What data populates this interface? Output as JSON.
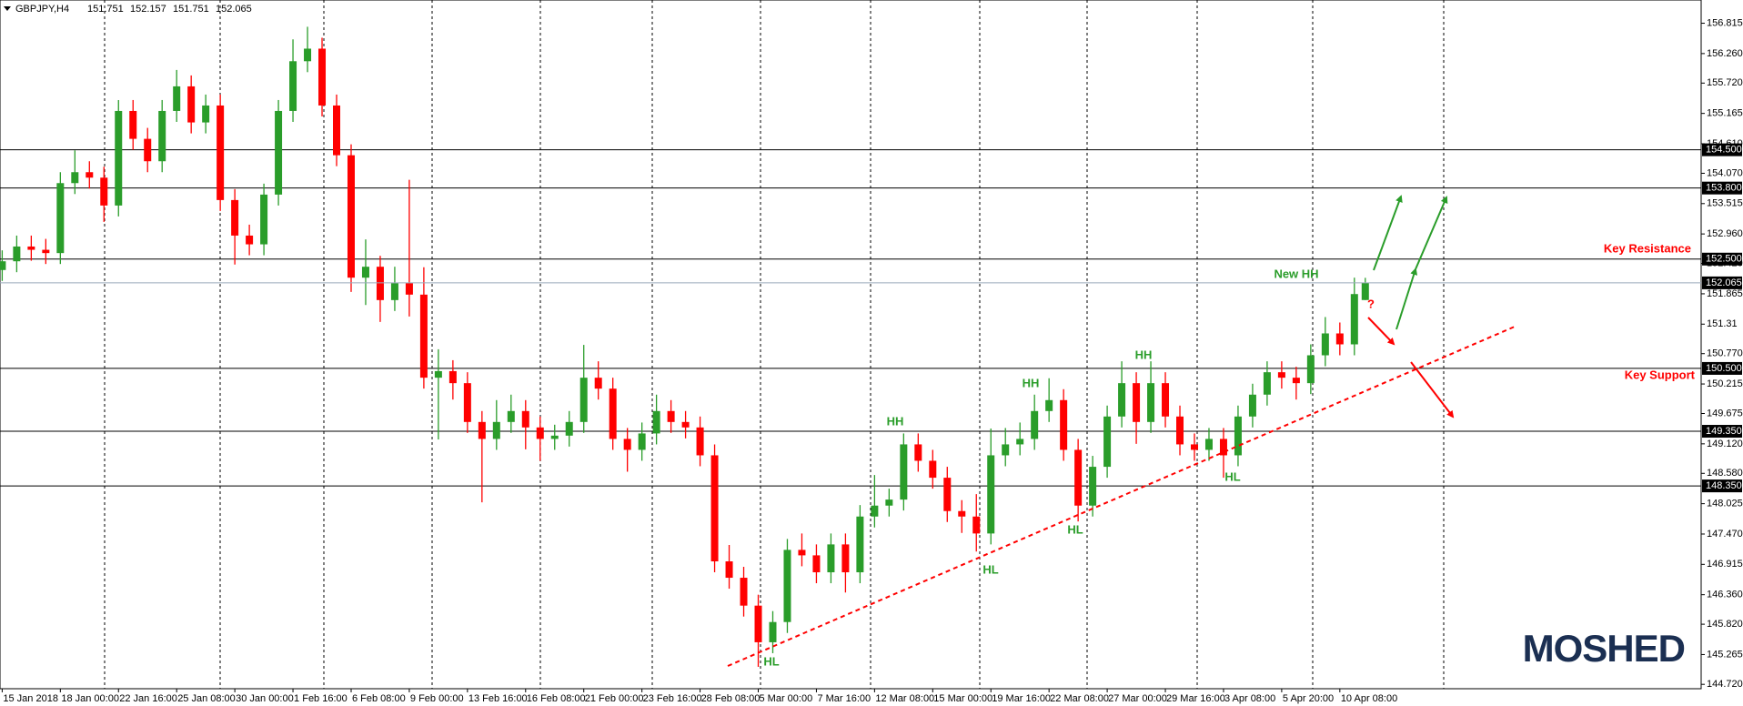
{
  "chart_data": {
    "type": "candlestick",
    "symbol": "GBPJPY,H4",
    "up_color": "#2a9d2a",
    "down_color": "#ff0000",
    "x": [
      0,
      4,
      8,
      12,
      16,
      20,
      24,
      28,
      32,
      36,
      40,
      44,
      48,
      52,
      56,
      60,
      64,
      68,
      72,
      76,
      80,
      84,
      88,
      92,
      96,
      100,
      104,
      108,
      112,
      116,
      120,
      124,
      128,
      132,
      136,
      140,
      144,
      148,
      152,
      156,
      160,
      164,
      168,
      172,
      176,
      180,
      184,
      188,
      192,
      196,
      200,
      204,
      208,
      212,
      216,
      220,
      224,
      228,
      232,
      236,
      240,
      244,
      248,
      252,
      256,
      260,
      264,
      268,
      272,
      276,
      280,
      284,
      288,
      292,
      296,
      300,
      304,
      308,
      312,
      316,
      320,
      324,
      328,
      332,
      336,
      340,
      344,
      348,
      352,
      356,
      360,
      364,
      368,
      372,
      375
    ],
    "open": [
      152.3,
      152.46,
      152.73,
      152.67,
      152.61,
      153.89,
      154.09,
      153.99,
      153.48,
      155.21,
      154.7,
      154.29,
      155.21,
      155.66,
      155.0,
      155.31,
      153.58,
      152.93,
      152.77,
      153.68,
      155.21,
      156.12,
      156.35,
      155.31,
      154.4,
      152.16,
      152.36,
      151.75,
      152.06,
      151.85,
      150.33,
      150.45,
      150.23,
      149.52,
      149.21,
      149.52,
      149.72,
      149.42,
      149.21,
      149.27,
      149.52,
      150.33,
      150.13,
      149.21,
      149.01,
      149.31,
      149.72,
      149.52,
      149.42,
      148.91,
      146.97,
      146.67,
      146.16,
      145.49,
      145.86,
      147.18,
      147.08,
      146.77,
      147.28,
      146.77,
      147.79,
      147.99,
      148.1,
      149.11,
      148.81,
      148.5,
      147.89,
      147.79,
      147.48,
      148.91,
      149.11,
      149.21,
      149.72,
      149.92,
      149.01,
      147.99,
      148.7,
      149.62,
      150.23,
      149.52,
      150.23,
      149.62,
      149.11,
      149.01,
      149.21,
      148.91,
      149.62,
      150.02,
      150.43,
      150.33,
      150.23,
      150.74,
      151.14,
      150.94,
      151.751
    ],
    "high": [
      152.66,
      152.93,
      152.93,
      152.87,
      154.09,
      154.49,
      154.29,
      154.19,
      155.41,
      155.41,
      154.9,
      155.41,
      155.96,
      155.86,
      155.51,
      155.51,
      153.78,
      153.13,
      153.88,
      155.41,
      156.52,
      156.75,
      156.55,
      155.51,
      154.6,
      152.86,
      152.56,
      152.36,
      153.95,
      152.35,
      150.85,
      150.65,
      150.43,
      149.72,
      149.92,
      150.02,
      149.92,
      149.62,
      149.47,
      149.72,
      150.93,
      150.63,
      150.33,
      149.41,
      149.51,
      150.02,
      149.92,
      149.72,
      149.62,
      149.11,
      147.27,
      146.87,
      146.36,
      146.06,
      147.38,
      147.48,
      147.28,
      147.48,
      147.48,
      148.0,
      148.55,
      148.3,
      149.31,
      149.31,
      149.01,
      148.7,
      148.09,
      148.2,
      149.4,
      149.41,
      149.51,
      150.02,
      150.32,
      150.12,
      149.21,
      148.9,
      149.82,
      150.63,
      150.43,
      150.63,
      150.43,
      149.82,
      149.31,
      149.41,
      149.41,
      149.82,
      150.22,
      150.63,
      150.63,
      150.53,
      150.94,
      151.44,
      151.34,
      152.16,
      152.157
    ],
    "low": [
      152.1,
      152.26,
      152.47,
      152.41,
      152.41,
      153.69,
      153.79,
      153.18,
      153.28,
      154.5,
      154.09,
      154.09,
      155.01,
      154.8,
      154.8,
      153.38,
      152.4,
      152.57,
      152.57,
      153.48,
      155.01,
      155.92,
      155.11,
      154.2,
      151.9,
      151.66,
      151.35,
      151.55,
      151.45,
      150.13,
      149.2,
      149.93,
      149.32,
      148.05,
      149.01,
      149.32,
      149.02,
      148.81,
      149.01,
      149.07,
      149.32,
      149.93,
      149.01,
      148.61,
      148.81,
      149.11,
      149.32,
      149.22,
      148.71,
      146.77,
      146.47,
      145.96,
      145.04,
      145.29,
      145.66,
      146.88,
      146.57,
      146.57,
      146.4,
      146.57,
      147.59,
      147.79,
      147.9,
      148.61,
      148.3,
      147.69,
      147.49,
      147.15,
      147.28,
      148.71,
      148.91,
      149.01,
      149.52,
      148.81,
      147.7,
      147.79,
      148.5,
      149.42,
      149.12,
      149.32,
      149.42,
      148.91,
      148.81,
      148.81,
      148.5,
      148.71,
      149.42,
      149.82,
      150.13,
      149.93,
      150.03,
      150.54,
      150.74,
      150.74,
      151.751
    ],
    "close": [
      152.46,
      152.73,
      152.67,
      152.61,
      153.89,
      154.09,
      153.99,
      153.48,
      155.21,
      154.7,
      154.29,
      155.21,
      155.66,
      155.0,
      155.31,
      153.58,
      152.93,
      152.77,
      153.68,
      155.21,
      156.12,
      156.35,
      155.31,
      154.4,
      152.16,
      152.36,
      151.75,
      152.06,
      151.85,
      150.33,
      150.45,
      150.23,
      149.52,
      149.21,
      149.52,
      149.72,
      149.42,
      149.21,
      149.27,
      149.52,
      150.33,
      150.13,
      149.21,
      149.01,
      149.31,
      149.72,
      149.52,
      149.42,
      148.91,
      146.97,
      146.67,
      146.16,
      145.49,
      145.86,
      147.18,
      147.08,
      146.77,
      147.28,
      146.77,
      147.79,
      147.99,
      148.1,
      149.11,
      148.81,
      148.5,
      147.89,
      147.79,
      147.48,
      148.91,
      149.11,
      149.21,
      149.72,
      149.92,
      149.01,
      147.99,
      148.7,
      149.62,
      150.23,
      149.52,
      150.23,
      149.62,
      149.11,
      149.01,
      149.21,
      148.91,
      149.62,
      150.02,
      150.43,
      150.33,
      150.23,
      150.74,
      151.14,
      150.94,
      151.86,
      152.065
    ],
    "xlim": [
      -0.6,
      467.4
    ],
    "ylim": [
      144.64,
      157.24
    ],
    "yticks": [
      156.815,
      {
        "value": 156.26,
        "label": "156.260"
      },
      {
        "value": 155.72,
        "label": "155.720"
      },
      155.165,
      {
        "value": 154.61,
        "label": "154.610"
      },
      {
        "value": 154.07,
        "label": "154.070"
      },
      153.515,
      {
        "value": 152.96,
        "label": "152.960"
      },
      {
        "value": 152.42,
        "label": "152.420"
      },
      151.865,
      151.31,
      {
        "value": 150.77,
        "label": "150.770"
      },
      150.215,
      149.675,
      {
        "value": 149.12,
        "label": "149.120"
      },
      {
        "value": 148.58,
        "label": "148.580"
      },
      148.025,
      {
        "value": 147.47,
        "label": "147.470"
      },
      146.915,
      {
        "value": 146.36,
        "label": "146.360"
      },
      {
        "value": 145.82,
        "label": "145.820"
      },
      145.265,
      {
        "value": 144.72,
        "label": "144.720"
      }
    ],
    "xticks": [
      {
        "value": 0,
        "label": "15 Jan 2018"
      },
      {
        "value": 16,
        "label": "18 Jan 00:00"
      },
      {
        "value": 32,
        "label": "22 Jan 16:00"
      },
      {
        "value": 48,
        "label": "25 Jan 08:00"
      },
      {
        "value": 64,
        "label": "30 Jan 00:00"
      },
      {
        "value": 80,
        "label": "1 Feb 16:00"
      },
      {
        "value": 96,
        "label": "6 Feb 08:00"
      },
      {
        "value": 112,
        "label": "9 Feb 00:00"
      },
      {
        "value": 128,
        "label": "13 Feb 16:00"
      },
      {
        "value": 144,
        "label": "16 Feb 08:00"
      },
      {
        "value": 160,
        "label": "21 Feb 00:00"
      },
      {
        "value": 176,
        "label": "23 Feb 16:00"
      },
      {
        "value": 192,
        "label": "28 Feb 08:00"
      },
      {
        "value": 208,
        "label": "5 Mar 00:00"
      },
      {
        "value": 224,
        "label": "7 Mar 16:00"
      },
      {
        "value": 240,
        "label": "12 Mar 08:00"
      },
      {
        "value": 256,
        "label": "15 Mar 00:00"
      },
      {
        "value": 272,
        "label": "19 Mar 16:00"
      },
      {
        "value": 288,
        "label": "22 Mar 08:00"
      },
      {
        "value": 304,
        "label": "27 Mar 00:00"
      },
      {
        "value": 320,
        "label": "29 Mar 16:00"
      },
      {
        "value": 336,
        "label": "3 Apr 08:00"
      },
      {
        "value": 352,
        "label": "5 Apr 20:00"
      },
      {
        "value": 368,
        "label": "10 Apr 08:00"
      }
    ],
    "levels": [
      {
        "value": 154.5,
        "label": "154.500"
      },
      {
        "value": 153.8,
        "label": "153.800"
      },
      {
        "value": 152.5,
        "label": "152.500"
      },
      {
        "value": 150.5,
        "label": "150.500"
      },
      {
        "value": 149.35,
        "label": "149.350"
      },
      {
        "value": 148.35,
        "label": "148.350"
      }
    ],
    "annotations": [
      {
        "text": "Key Resistance",
        "color": "#ff0000"
      },
      {
        "text": "Key Support",
        "color": "#ff0000"
      },
      {
        "text": "New HH",
        "color": "#2a9d2a"
      },
      {
        "text": "HH",
        "color": "#2a9d2a"
      },
      {
        "text": "HH",
        "color": "#2a9d2a"
      },
      {
        "text": "HH",
        "color": "#2a9d2a"
      },
      {
        "text": "HL",
        "color": "#2a9d2a"
      },
      {
        "text": "HL",
        "color": "#2a9d2a"
      },
      {
        "text": "HL",
        "color": "#2a9d2a"
      },
      {
        "text": "HL",
        "color": "#2a9d2a"
      },
      {
        "text": "?",
        "color": "#ff0000"
      }
    ]
  },
  "logo": "MOSHED"
}
